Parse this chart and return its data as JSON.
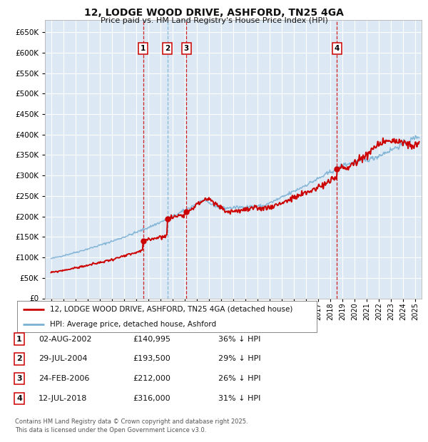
{
  "title": "12, LODGE WOOD DRIVE, ASHFORD, TN25 4GA",
  "subtitle": "Price paid vs. HM Land Registry's House Price Index (HPI)",
  "legend_line1": "12, LODGE WOOD DRIVE, ASHFORD, TN25 4GA (detached house)",
  "legend_line2": "HPI: Average price, detached house, Ashford",
  "footnote1": "Contains HM Land Registry data © Crown copyright and database right 2025.",
  "footnote2": "This data is licensed under the Open Government Licence v3.0.",
  "transactions": [
    {
      "num": 1,
      "date": "02-AUG-2002",
      "price": "£140,995",
      "pct": "36% ↓ HPI",
      "year_x": 2002.58,
      "value": 140995,
      "vline_color": "#cc0000"
    },
    {
      "num": 2,
      "date": "29-JUL-2004",
      "price": "£193,500",
      "pct": "29% ↓ HPI",
      "year_x": 2004.57,
      "value": 193500,
      "vline_color": "#7ab0d4"
    },
    {
      "num": 3,
      "date": "24-FEB-2006",
      "price": "£212,000",
      "pct": "26% ↓ HPI",
      "year_x": 2006.14,
      "value": 212000,
      "vline_color": "#cc0000"
    },
    {
      "num": 4,
      "date": "12-JUL-2018",
      "price": "£316,000",
      "pct": "31% ↓ HPI",
      "year_x": 2018.53,
      "value": 316000,
      "vline_color": "#cc0000"
    }
  ],
  "ylim": [
    0,
    680000
  ],
  "yticks": [
    0,
    50000,
    100000,
    150000,
    200000,
    250000,
    300000,
    350000,
    400000,
    450000,
    500000,
    550000,
    600000,
    650000
  ],
  "xlim": [
    1994.5,
    2025.5
  ],
  "fig_bg_color": "#ffffff",
  "plot_bg_color": "#dce8f3",
  "grid_color": "#ffffff",
  "red_line_color": "#cc0000",
  "blue_line_color": "#7ab0d4",
  "box_edge_color": "#cc0000",
  "hpi_seed": 42,
  "price_seed": 99
}
